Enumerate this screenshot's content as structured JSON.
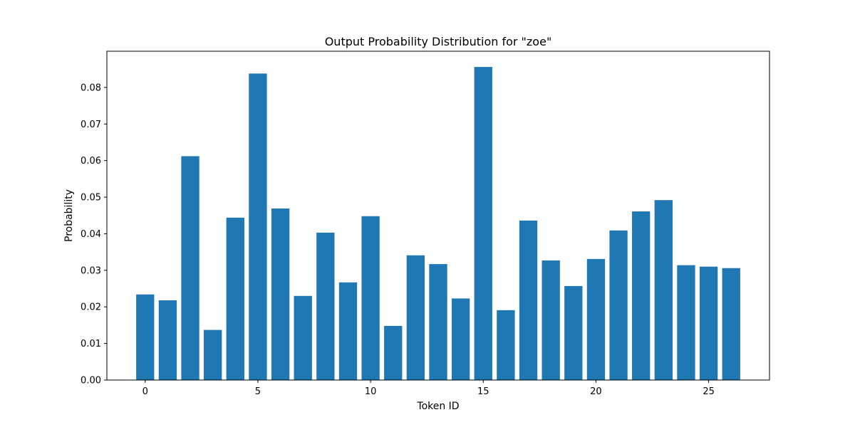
{
  "chart_data": {
    "type": "bar",
    "title": "Output Probability Distribution for \"zoe\"",
    "xlabel": "Token ID",
    "ylabel": "Probability",
    "x": [
      0,
      1,
      2,
      3,
      4,
      5,
      6,
      7,
      8,
      9,
      10,
      11,
      12,
      13,
      14,
      15,
      16,
      17,
      18,
      19,
      20,
      21,
      22,
      23,
      24,
      25,
      26
    ],
    "values": [
      0.0234,
      0.0218,
      0.0612,
      0.0137,
      0.0444,
      0.0838,
      0.0469,
      0.023,
      0.0403,
      0.0267,
      0.0448,
      0.0148,
      0.0341,
      0.0317,
      0.0223,
      0.0856,
      0.0191,
      0.0436,
      0.0327,
      0.0257,
      0.0331,
      0.0409,
      0.0461,
      0.0492,
      0.0314,
      0.031,
      0.0306
    ],
    "xlim": [
      -1.7,
      27.7
    ],
    "ylim": [
      0,
      0.0899
    ],
    "xticks": [
      0,
      5,
      10,
      15,
      20,
      25
    ],
    "xtick_labels": [
      "0",
      "5",
      "10",
      "15",
      "20",
      "25"
    ],
    "yticks": [
      0,
      0.01,
      0.02,
      0.03,
      0.04,
      0.05,
      0.06,
      0.07,
      0.08
    ],
    "ytick_labels": [
      "0.00",
      "0.01",
      "0.02",
      "0.03",
      "0.04",
      "0.05",
      "0.06",
      "0.07",
      "0.08"
    ],
    "bar_color": "#1f77b4",
    "grid": false,
    "legend": "none"
  }
}
